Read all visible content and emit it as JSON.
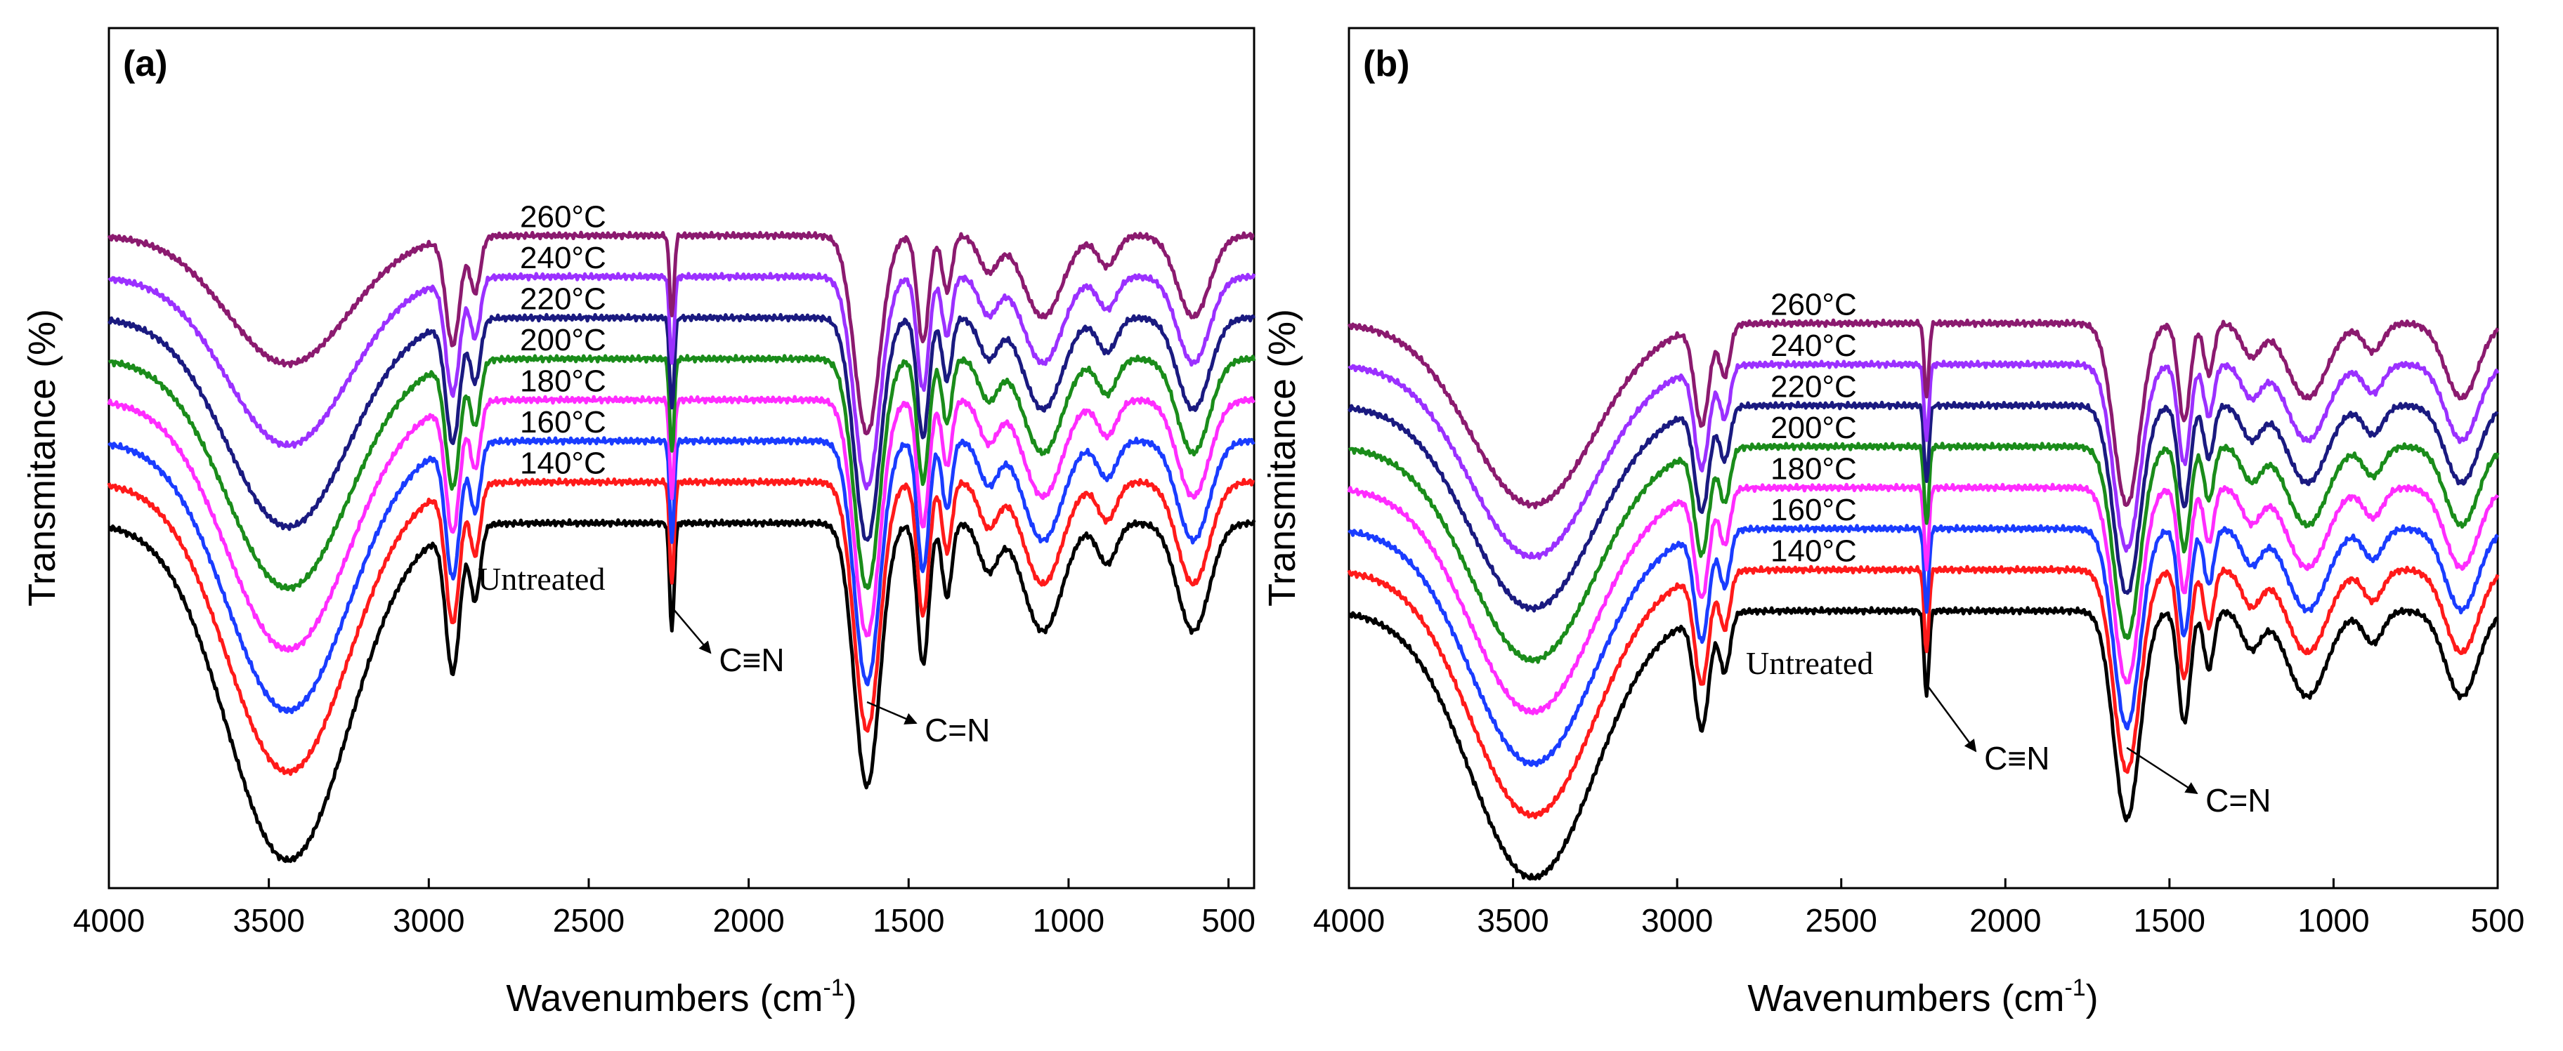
{
  "chart_data": [
    {
      "panel": "(a)",
      "type": "line",
      "xlabel": "Wavenumbers (cm",
      "xlabel_sup": "-1",
      "xlabel_end": ")",
      "ylabel": "Transmitance (%)",
      "xlim": [
        4000,
        420
      ],
      "x_ticks": [
        "4000",
        "3500",
        "3000",
        "2500",
        "2000",
        "1500",
        "1000",
        "500"
      ],
      "x_tick_values": [
        4000,
        3500,
        3000,
        2500,
        2000,
        1500,
        1000,
        500
      ],
      "series": [
        {
          "name": "Untreated",
          "label": "Untreated",
          "color": "#000000",
          "baseline": 0.0,
          "depth": 1.0
        },
        {
          "name": "140C",
          "label": "140°C",
          "color": "#ff1a1a",
          "baseline": 0.78,
          "depth": 0.86
        },
        {
          "name": "160C",
          "label": "160°C",
          "color": "#1a3cff",
          "baseline": 1.56,
          "depth": 0.8
        },
        {
          "name": "180C",
          "label": "180°C",
          "color": "#ff2cff",
          "baseline": 2.34,
          "depth": 0.74
        },
        {
          "name": "200C",
          "label": "200°C",
          "color": "#1a8c1a",
          "baseline": 3.12,
          "depth": 0.68
        },
        {
          "name": "220C",
          "label": "220°C",
          "color": "#1a1a80",
          "baseline": 3.9,
          "depth": 0.62
        },
        {
          "name": "240C",
          "label": "240°C",
          "color": "#9b30ff",
          "baseline": 4.68,
          "depth": 0.5
        },
        {
          "name": "260C",
          "label": "260°C",
          "color": "#8b1a6f",
          "baseline": 5.46,
          "depth": 0.38
        }
      ],
      "annotations": [
        {
          "text": "C≡N",
          "x": 2240
        },
        {
          "text": "C=N",
          "x": 1630
        }
      ]
    },
    {
      "panel": "(b)",
      "type": "line",
      "xlabel": "Wavenumbers (cm",
      "xlabel_sup": "-1",
      "xlabel_end": ")",
      "ylabel": "Transmitance (%)",
      "xlim": [
        4000,
        500
      ],
      "x_ticks": [
        "4000",
        "3500",
        "3000",
        "2500",
        "2000",
        "1500",
        "1000",
        "500"
      ],
      "x_tick_values": [
        4000,
        3500,
        3000,
        2500,
        2000,
        1500,
        1000,
        500
      ],
      "series": [
        {
          "name": "Untreated",
          "label": "Untreated",
          "color": "#000000",
          "baseline": 0.0,
          "depth": 1.0
        },
        {
          "name": "140C",
          "label": "140°C",
          "color": "#ff1a1a",
          "baseline": 0.78,
          "depth": 0.92
        },
        {
          "name": "160C",
          "label": "160°C",
          "color": "#1a3cff",
          "baseline": 1.56,
          "depth": 0.88
        },
        {
          "name": "180C",
          "label": "180°C",
          "color": "#ff2cff",
          "baseline": 2.34,
          "depth": 0.84
        },
        {
          "name": "200C",
          "label": "200°C",
          "color": "#1a8c1a",
          "baseline": 3.12,
          "depth": 0.8
        },
        {
          "name": "220C",
          "label": "220°C",
          "color": "#1a1a80",
          "baseline": 3.9,
          "depth": 0.76
        },
        {
          "name": "240C",
          "label": "240°C",
          "color": "#9b30ff",
          "baseline": 4.68,
          "depth": 0.72
        },
        {
          "name": "260C",
          "label": "260°C",
          "color": "#8b1a6f",
          "baseline": 5.46,
          "depth": 0.68
        }
      ],
      "annotations": [
        {
          "text": "C≡N",
          "x": 2240
        },
        {
          "text": "C=N",
          "x": 1630
        }
      ]
    }
  ]
}
